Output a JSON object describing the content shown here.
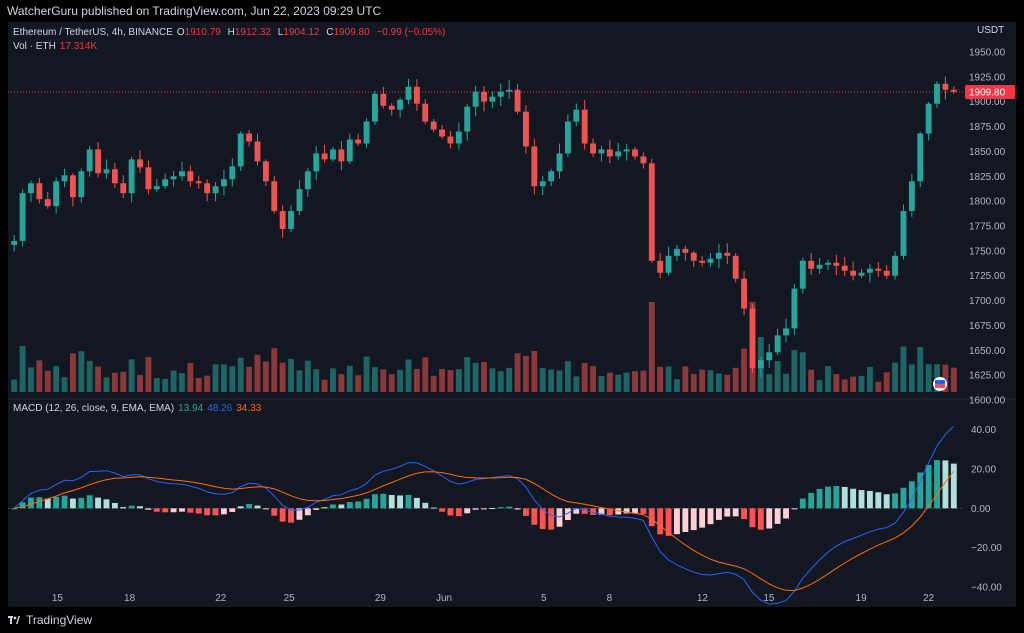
{
  "header": {
    "published": "WatcherGuru published on TradingView.com, Jun 22, 2023 09:29 UTC"
  },
  "legend": {
    "symbol": "Ethereum / TetherUS, 4h, BINANCE",
    "o_label": "O",
    "o": "1910.79",
    "h_label": "H",
    "h": "1912.32",
    "l_label": "L",
    "l": "1904.12",
    "c_label": "C",
    "c": "1909.80",
    "change": "−0.99 (−0.05%)",
    "vol_label": "Vol · ETH",
    "vol": "17.314K"
  },
  "macd_legend": {
    "label": "MACD (12, 26, close, 9, EMA, EMA)",
    "hist": "13.94",
    "macd": "48.26",
    "signal": "34.33"
  },
  "footer": {
    "brand": "TradingView"
  },
  "colors": {
    "up": "#26a69a",
    "down": "#ef5350",
    "macd": "#2962ff",
    "signal": "#ff6d00",
    "pricetag": "#f23645",
    "bg": "#131722"
  },
  "chart_data": [
    {
      "type": "candlestick",
      "currency": "USDT",
      "last_price": "1909.80",
      "ylim": [
        1600,
        1950
      ],
      "yticks": [
        "1950.00",
        "1925.00",
        "1900.00",
        "1875.00",
        "1850.00",
        "1825.00",
        "1800.00",
        "1775.00",
        "1750.00",
        "1725.00",
        "1700.00",
        "1675.00",
        "1650.00",
        "1625.00",
        "1600.00"
      ],
      "xticks": [
        {
          "label": "15",
          "pos": 0.052
        },
        {
          "label": "18",
          "pos": 0.128
        },
        {
          "label": "22",
          "pos": 0.224
        },
        {
          "label": "25",
          "pos": 0.296
        },
        {
          "label": "29",
          "pos": 0.392
        },
        {
          "label": "Jun",
          "pos": 0.459
        },
        {
          "label": "5",
          "pos": 0.564
        },
        {
          "label": "8",
          "pos": 0.633
        },
        {
          "label": "12",
          "pos": 0.731
        },
        {
          "label": "15",
          "pos": 0.801
        },
        {
          "label": "19",
          "pos": 0.898
        },
        {
          "label": "22",
          "pos": 0.969
        }
      ],
      "close": [
        1760,
        1808,
        1818,
        1802,
        1795,
        1820,
        1826,
        1804,
        1830,
        1852,
        1828,
        1832,
        1818,
        1808,
        1842,
        1834,
        1812,
        1815,
        1822,
        1825,
        1830,
        1820,
        1818,
        1808,
        1815,
        1822,
        1835,
        1868,
        1860,
        1840,
        1820,
        1790,
        1772,
        1790,
        1812,
        1830,
        1848,
        1842,
        1852,
        1840,
        1862,
        1858,
        1880,
        1908,
        1896,
        1892,
        1902,
        1915,
        1898,
        1880,
        1872,
        1865,
        1858,
        1870,
        1895,
        1910,
        1900,
        1905,
        1910,
        1912,
        1890,
        1855,
        1815,
        1820,
        1830,
        1848,
        1880,
        1892,
        1858,
        1848,
        1852,
        1845,
        1850,
        1852,
        1845,
        1838,
        1740,
        1728,
        1745,
        1752,
        1748,
        1740,
        1738,
        1742,
        1748,
        1745,
        1722,
        1692,
        1632,
        1640,
        1648,
        1665,
        1672,
        1712,
        1740,
        1732,
        1736,
        1738,
        1735,
        1730,
        1725,
        1728,
        1732,
        1730,
        1725,
        1745,
        1790,
        1820,
        1868,
        1898,
        1918,
        1912,
        1910
      ],
      "volume_units": "ETH (relative)",
      "volume_max_est": "170K",
      "macd": {
        "params": "12, 26, close, 9, EMA, EMA",
        "ylim": [
          -40,
          50
        ],
        "yticks": [
          "40.00",
          "20.00",
          "0.00",
          "−20.00",
          "−40.00"
        ],
        "last": {
          "histogram": 13.94,
          "macd": 48.26,
          "signal": 34.33
        }
      }
    }
  ]
}
